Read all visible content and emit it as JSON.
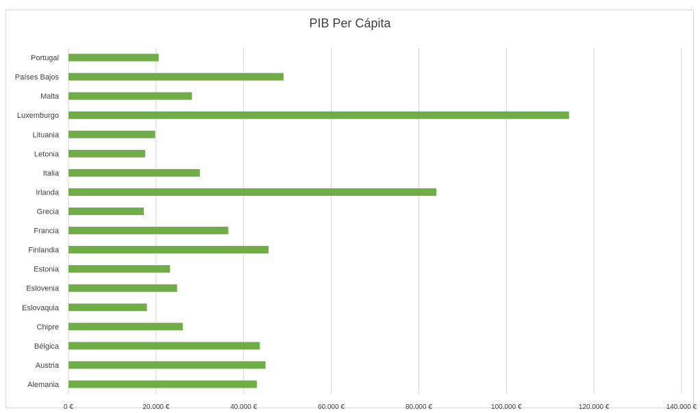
{
  "chart_data": {
    "type": "bar",
    "orientation": "horizontal",
    "title": "PIB Per Cápita",
    "xlabel": "",
    "ylabel": "",
    "categories": [
      "Portugal",
      "Países Bajos",
      "Malta",
      "Luxemburgo",
      "Lituania",
      "Letonia",
      "Italia",
      "Irlanda",
      "Grecia",
      "Francia",
      "Finlandia",
      "Estonia",
      "Eslovenia",
      "Eslovaquia",
      "Chipre",
      "Bélgica",
      "Austria",
      "Alemania"
    ],
    "values": [
      20600,
      49100,
      28200,
      114300,
      19800,
      17500,
      30000,
      84000,
      17200,
      36500,
      45700,
      23200,
      24800,
      17900,
      26100,
      43700,
      45000,
      43000
    ],
    "xlim": [
      0,
      140000
    ],
    "xticks": [
      0,
      20000,
      40000,
      60000,
      80000,
      100000,
      120000,
      140000
    ],
    "xtick_labels": [
      "0 €",
      "20.000 €",
      "40.000 €",
      "60.000 €",
      "80.000 €",
      "100.000 €",
      "120.000 €",
      "140.000 €"
    ],
    "grid": true,
    "bar_color": "#70ad47",
    "grid_color": "#d9d9d9"
  }
}
